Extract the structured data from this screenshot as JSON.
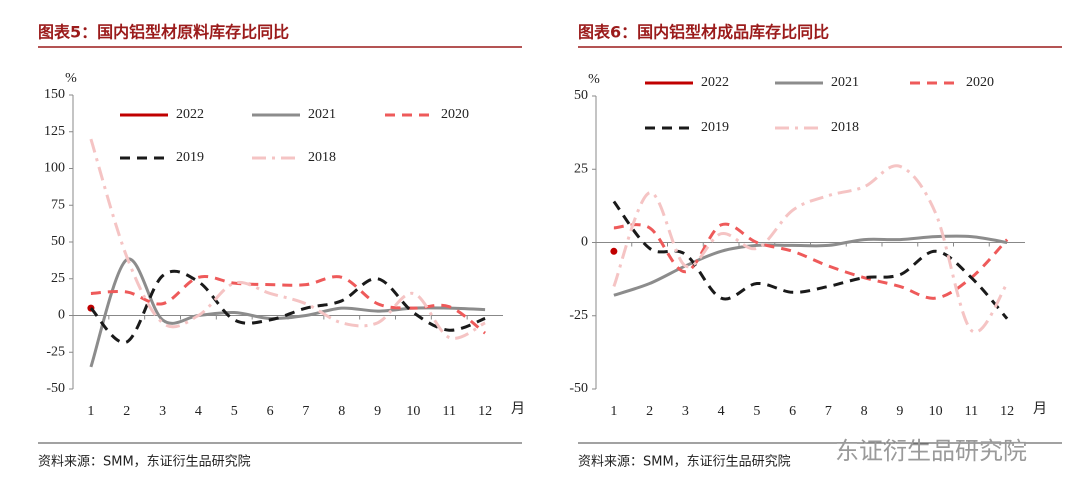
{
  "chart_data": [
    {
      "type": "line",
      "title": "图表5：国内铝型材原料库存比同比",
      "y_unit": "%",
      "x_unit": "月",
      "categories": [
        "1",
        "2",
        "3",
        "4",
        "5",
        "6",
        "7",
        "8",
        "9",
        "10",
        "11",
        "12"
      ],
      "ylim": [
        -50,
        150
      ],
      "yticks": [
        -50,
        -25,
        0,
        25,
        50,
        75,
        100,
        125,
        150
      ],
      "source": "资料来源：SMM，东证衍生品研究院",
      "series": [
        {
          "name": "2022",
          "color": "#c00000",
          "style": "solid",
          "values": [
            5,
            null,
            null,
            null,
            null,
            null,
            null,
            null,
            null,
            null,
            null,
            null
          ]
        },
        {
          "name": "2021",
          "color": "#8c8c8c",
          "style": "solid",
          "values": [
            -35,
            38,
            -3,
            0,
            2,
            -2,
            0,
            5,
            3,
            5,
            5,
            4
          ]
        },
        {
          "name": "2020",
          "color": "#ee5a5a",
          "style": "dashed",
          "values": [
            15,
            16,
            8,
            26,
            22,
            21,
            21,
            26,
            8,
            5,
            6,
            -12
          ]
        },
        {
          "name": "2019",
          "color": "#1a1a1a",
          "style": "dashed",
          "values": [
            5,
            -18,
            27,
            23,
            -3,
            -3,
            5,
            10,
            25,
            2,
            -10,
            -2
          ]
        },
        {
          "name": "2018",
          "color": "#f5c4c4",
          "style": "dashdot",
          "values": [
            120,
            40,
            -5,
            0,
            22,
            15,
            8,
            -5,
            -5,
            15,
            -15,
            -5
          ]
        }
      ]
    },
    {
      "type": "line",
      "title": "图表6：国内铝型材成品库存比同比",
      "y_unit": "%",
      "x_unit": "月",
      "categories": [
        "1",
        "2",
        "3",
        "4",
        "5",
        "6",
        "7",
        "8",
        "9",
        "10",
        "11",
        "12"
      ],
      "ylim": [
        -50,
        50
      ],
      "yticks": [
        -50,
        -25,
        0,
        25,
        50
      ],
      "source": "资料来源：SMM，东证衍生品研究院",
      "watermark": "东证衍生品研究院",
      "series": [
        {
          "name": "2022",
          "color": "#c00000",
          "style": "solid",
          "values": [
            -3,
            null,
            null,
            null,
            null,
            null,
            null,
            null,
            null,
            null,
            null,
            null
          ]
        },
        {
          "name": "2021",
          "color": "#8c8c8c",
          "style": "solid",
          "values": [
            -18,
            -14,
            -8,
            -3,
            -1,
            -1,
            -1,
            1,
            1,
            2,
            2,
            0
          ]
        },
        {
          "name": "2020",
          "color": "#ee5a5a",
          "style": "dashed",
          "values": [
            5,
            5,
            -10,
            6,
            0,
            -3,
            -8,
            -12,
            -15,
            -19,
            -12,
            1
          ]
        },
        {
          "name": "2019",
          "color": "#1a1a1a",
          "style": "dashed",
          "values": [
            14,
            -2,
            -4,
            -19,
            -14,
            -17,
            -15,
            -12,
            -11,
            -3,
            -12,
            -26
          ]
        },
        {
          "name": "2018",
          "color": "#f5c4c4",
          "style": "dashdot",
          "values": [
            -15,
            17,
            -8,
            3,
            -2,
            11,
            16,
            19,
            26,
            10,
            -30,
            -14
          ]
        }
      ]
    }
  ]
}
